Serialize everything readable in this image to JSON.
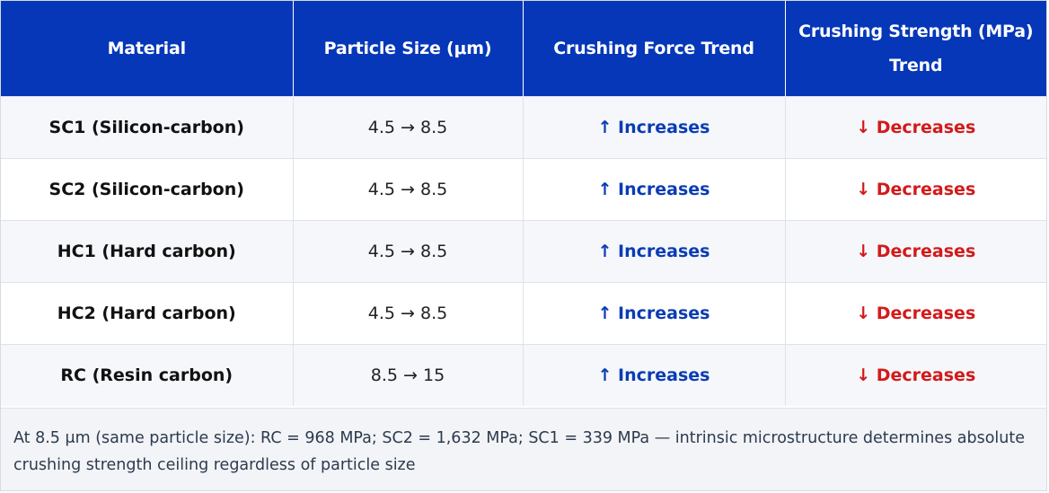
{
  "table": {
    "headers": [
      "Material",
      "Particle Size (μm)",
      "Crushing Force Trend",
      "Crushing Strength (MPa) Trend"
    ],
    "rows": [
      {
        "material": "SC1 (Silicon-carbon)",
        "size": "4.5 → 8.5",
        "force": "↑ Increases",
        "strength": "↓ Decreases"
      },
      {
        "material": "SC2 (Silicon-carbon)",
        "size": "4.5 → 8.5",
        "force": "↑ Increases",
        "strength": "↓ Decreases"
      },
      {
        "material": "HC1 (Hard carbon)",
        "size": "4.5 → 8.5",
        "force": "↑ Increases",
        "strength": "↓ Decreases"
      },
      {
        "material": "HC2 (Hard carbon)",
        "size": "4.5 → 8.5",
        "force": "↑ Increases",
        "strength": "↓ Decreases"
      },
      {
        "material": "RC (Resin carbon)",
        "size": "8.5 → 15",
        "force": "↑ Increases",
        "strength": "↓ Decreases"
      }
    ],
    "footnote": "At 8.5 μm (same particle size): RC = 968 MPa; SC2 = 1,632 MPa; SC1 = 339 MPa — intrinsic microstructure determines absolute crushing strength ceiling regardless of particle size"
  },
  "colors": {
    "header_bg": "#0537b8",
    "increase": "#0a3cb4",
    "decrease": "#d31a1a"
  }
}
